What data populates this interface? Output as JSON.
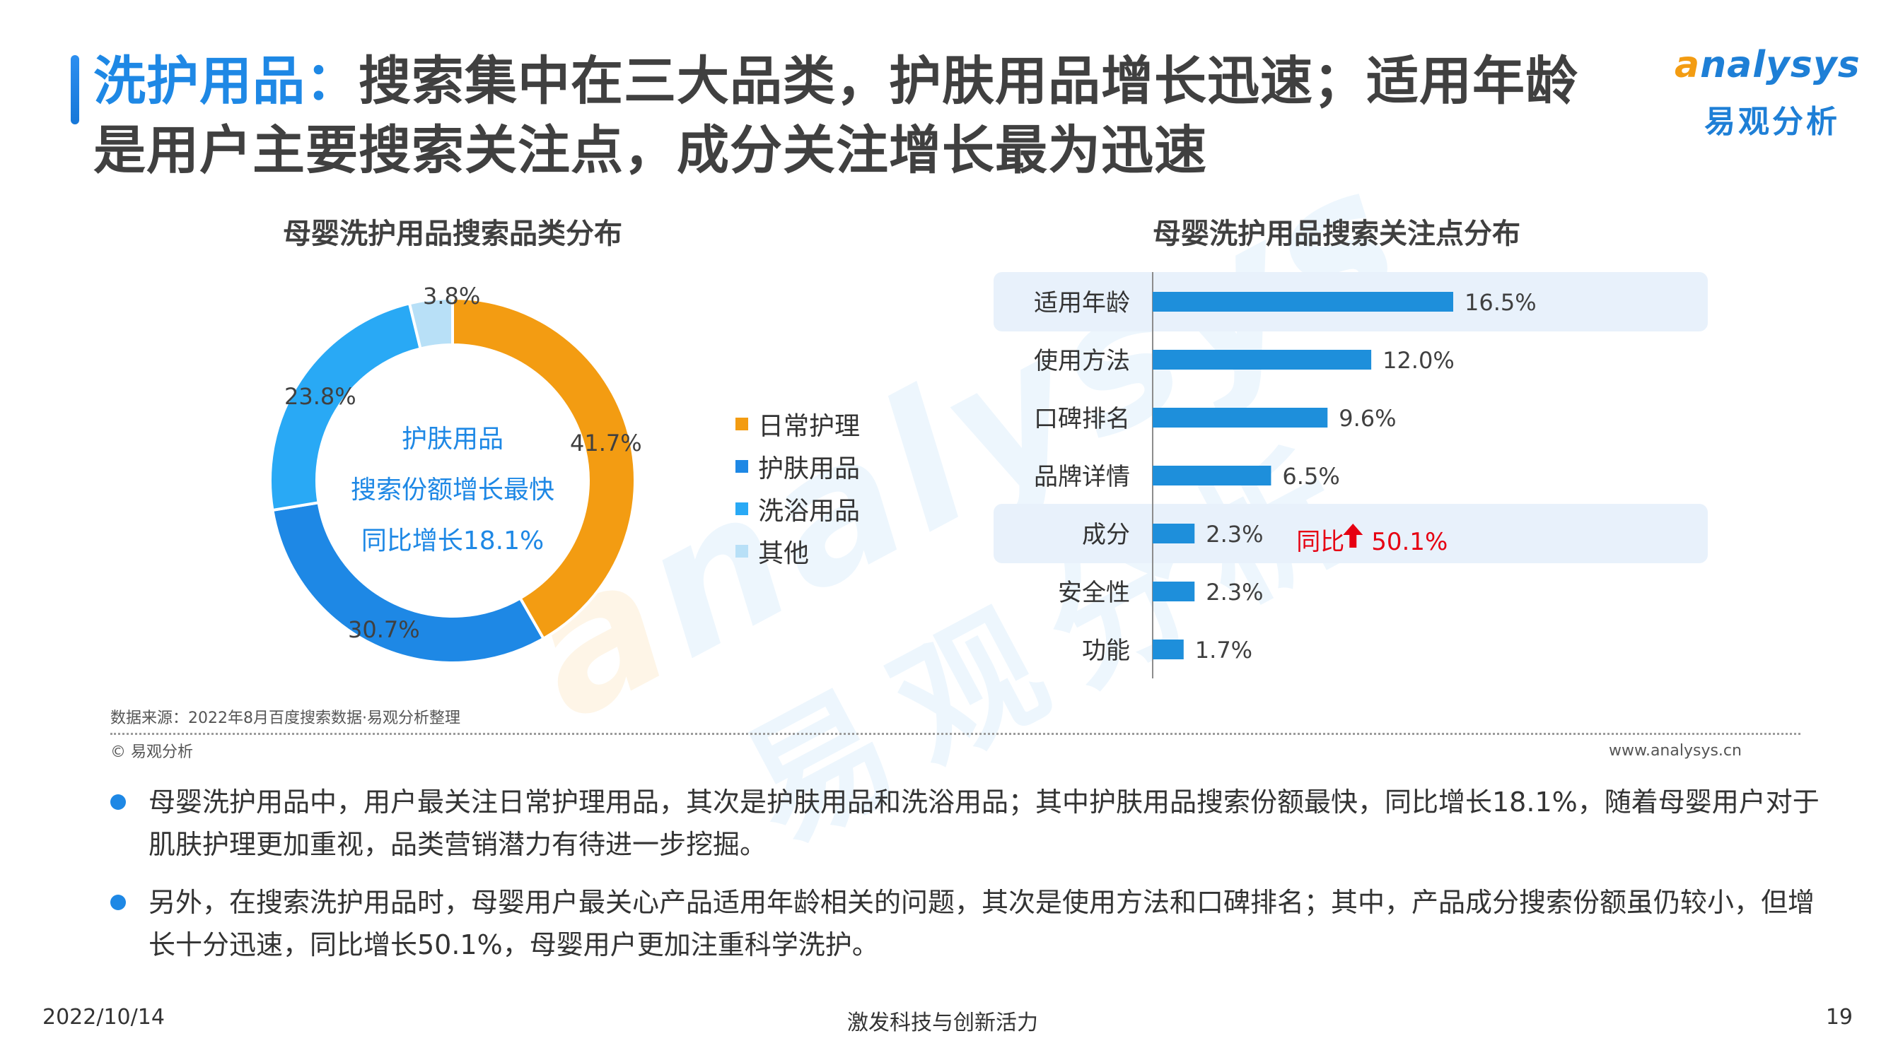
{
  "title": {
    "highlight": "洗护用品：",
    "rest": "搜索集中在三大品类，护肤用品增长迅速；适用年龄是用户主要搜索关注点，成分关注增长最为迅速"
  },
  "logo": {
    "en": "nalysys",
    "en_initial": "a",
    "cn": "易观分析"
  },
  "watermark": {
    "en": "nalysys",
    "en_initial": "a",
    "cn": "易观分析"
  },
  "colors": {
    "orange": "#F39C12",
    "dark_blue": "#1E88E5",
    "light_blue": "#29A9F5",
    "pale_blue": "#B8E0F7",
    "bar_blue": "#1E8FDB",
    "highlight_bg": "#E8F1FB",
    "red": "#E60012"
  },
  "chart_data": [
    {
      "type": "pie",
      "title": "母婴洗护用品搜索品类分布",
      "categories": [
        "日常护理",
        "护肤用品",
        "洗浴用品",
        "其他"
      ],
      "values": [
        41.7,
        30.7,
        23.8,
        3.8
      ],
      "value_labels": [
        "41.7%",
        "30.7%",
        "23.8%",
        "3.8%"
      ],
      "donut": true,
      "center_text": [
        "护肤用品",
        "搜索份额增长最快",
        "同比增长18.1%"
      ],
      "legend_position": "right"
    },
    {
      "type": "bar",
      "orientation": "horizontal",
      "title": "母婴洗护用品搜索关注点分布",
      "categories": [
        "适用年龄",
        "使用方法",
        "口碑排名",
        "品牌详情",
        "成分",
        "安全性",
        "功能"
      ],
      "values": [
        16.5,
        12.0,
        9.6,
        6.5,
        2.3,
        2.3,
        1.7
      ],
      "value_labels": [
        "16.5%",
        "12.0%",
        "9.6%",
        "6.5%",
        "2.3%",
        "2.3%",
        "1.7%"
      ],
      "highlighted": [
        "适用年龄",
        "成分"
      ],
      "annotation": {
        "category": "成分",
        "prefix": "同比",
        "arrow": "up",
        "value": "50.1%"
      },
      "xlim": [
        0,
        16.5
      ]
    }
  ],
  "source": "数据来源：2022年8月百度搜索数据·易观分析整理",
  "copyright": "© 易观分析",
  "url": "www.analysys.cn",
  "bullets": [
    "母婴洗护用品中，用户最关注日常护理用品，其次是护肤用品和洗浴用品；其中护肤用品搜索份额最快，同比增长18.1%，随着母婴用户对于肌肤护理更加重视，品类营销潜力有待进一步挖掘。",
    "另外，在搜索洗护用品时，母婴用户最关心产品适用年龄相关的问题，其次是使用方法和口碑排名；其中，产品成分搜索份额虽仍较小，但增长十分迅速，同比增长50.1%，母婴用户更加注重科学洗护。"
  ],
  "footer": {
    "date": "2022/10/14",
    "slogan": "激发科技与创新活力",
    "page": "19"
  }
}
